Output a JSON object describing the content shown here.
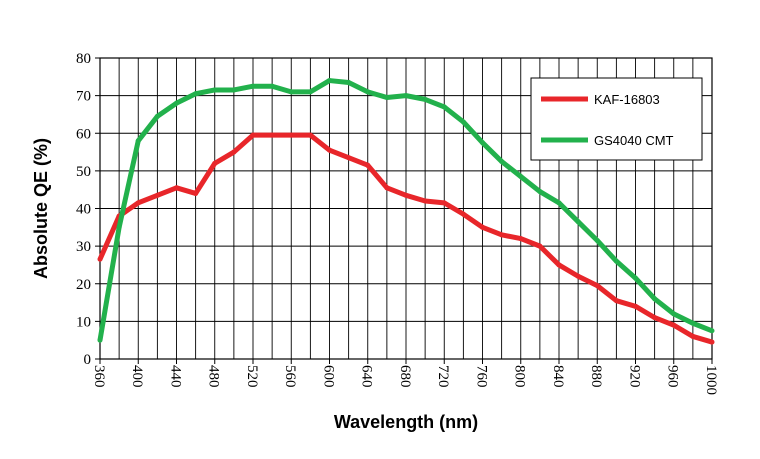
{
  "chart_data": {
    "type": "line",
    "xlabel": "Wavelength (nm)",
    "ylabel": "Absolute QE (%)",
    "xlim": [
      360,
      1000
    ],
    "ylim": [
      0,
      80
    ],
    "x_ticks": [
      360,
      400,
      440,
      480,
      520,
      560,
      600,
      640,
      680,
      720,
      760,
      800,
      840,
      880,
      920,
      960,
      1000
    ],
    "y_ticks": [
      0,
      10,
      20,
      30,
      40,
      50,
      60,
      70,
      80
    ],
    "grid": true,
    "legend_position": "top-right",
    "series": [
      {
        "name": "KAF-16803",
        "color": "#e8262a",
        "x": [
          360,
          380,
          400,
          420,
          440,
          460,
          480,
          500,
          520,
          540,
          560,
          580,
          600,
          620,
          640,
          660,
          680,
          700,
          720,
          740,
          760,
          780,
          800,
          820,
          840,
          860,
          880,
          900,
          920,
          940,
          960,
          980,
          1000
        ],
        "y": [
          26.5,
          38,
          41.5,
          43.5,
          45.5,
          44,
          52,
          55,
          59.5,
          59.5,
          59.5,
          59.5,
          55.5,
          53.5,
          51.5,
          45.5,
          43.5,
          42,
          41.5,
          38.5,
          35,
          33,
          32,
          30,
          25,
          22,
          19.5,
          15.5,
          14,
          11,
          9,
          6,
          4.5
        ]
      },
      {
        "name": "GS4040 CMT",
        "color": "#22b14c",
        "x": [
          360,
          380,
          400,
          420,
          440,
          460,
          480,
          500,
          520,
          540,
          560,
          580,
          600,
          620,
          640,
          660,
          680,
          700,
          720,
          740,
          760,
          780,
          800,
          820,
          840,
          860,
          880,
          900,
          920,
          940,
          960,
          980,
          1000
        ],
        "y": [
          5,
          35,
          58,
          64.5,
          68,
          70.5,
          71.5,
          71.5,
          72.5,
          72.5,
          71,
          71,
          74,
          73.5,
          71,
          69.5,
          70,
          69,
          67,
          63,
          57.5,
          52.5,
          48.5,
          44.5,
          41.5,
          36.5,
          31.5,
          26,
          21.5,
          16,
          12,
          9.5,
          7.5
        ]
      }
    ]
  }
}
